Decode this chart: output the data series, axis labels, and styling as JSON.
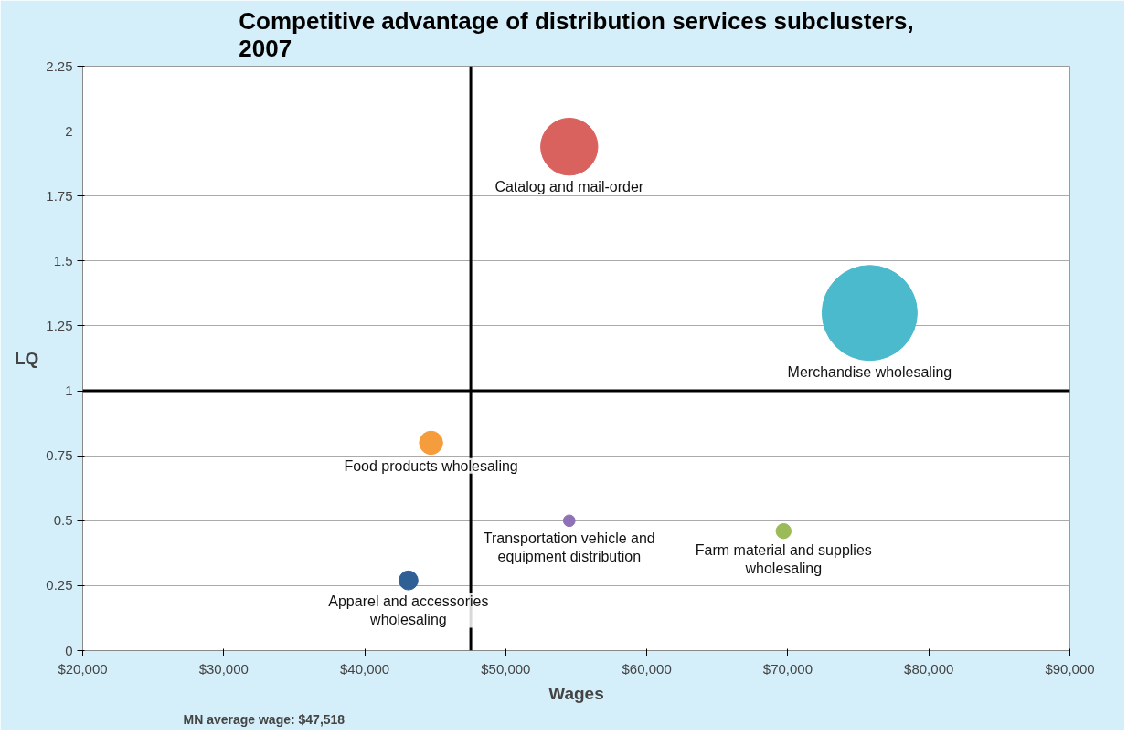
{
  "chart_data": {
    "type": "bubble",
    "title": "Competitive advantage of distribution services subclusters,\n2007",
    "xlabel": "Wages",
    "ylabel": "LQ",
    "xlim": [
      20000,
      90000
    ],
    "ylim": [
      0,
      2.25
    ],
    "xticks": [
      {
        "value": 20000,
        "label": "$20,000"
      },
      {
        "value": 30000,
        "label": "$30,000"
      },
      {
        "value": 40000,
        "label": "$40,000"
      },
      {
        "value": 50000,
        "label": "$50,000"
      },
      {
        "value": 60000,
        "label": "$60,000"
      },
      {
        "value": 70000,
        "label": "$70,000"
      },
      {
        "value": 80000,
        "label": "$80,000"
      },
      {
        "value": 90000,
        "label": "$90,000"
      }
    ],
    "yticks": [
      0,
      0.25,
      0.5,
      0.75,
      1,
      1.25,
      1.5,
      1.75,
      2,
      2.25
    ],
    "grid": "y",
    "series": [
      {
        "name": "Apparel and accessories\nwholesaling",
        "color": "#2e5f95",
        "x": [
          43100
        ],
        "values": [
          0.27
        ],
        "sizes": [
          0.04
        ]
      },
      {
        "name": "Food products wholesaling",
        "color": "#f59c3c",
        "x": [
          44700
        ],
        "values": [
          0.8
        ],
        "sizes": [
          0.06
        ]
      },
      {
        "name": "Transportation vehicle and\nequipment distribution",
        "color": "#8e71b6",
        "x": [
          54500
        ],
        "values": [
          0.5
        ],
        "sizes": [
          0.015
        ]
      },
      {
        "name": "Farm material and supplies\nwholesaling",
        "color": "#9bbb59",
        "x": [
          69700
        ],
        "values": [
          0.46
        ],
        "sizes": [
          0.025
        ]
      },
      {
        "name": "Catalog and mail-order",
        "color": "#d9625e",
        "x": [
          54500
        ],
        "values": [
          1.94
        ],
        "sizes": [
          0.36
        ]
      },
      {
        "name": "Merchandise wholesaling",
        "color": "#4bbacc",
        "x": [
          75800
        ],
        "values": [
          1.3
        ],
        "sizes": [
          1
        ]
      }
    ],
    "ref_lines": [
      {
        "axis": "x",
        "value": 47518,
        "color": "#000000"
      },
      {
        "axis": "y",
        "value": 1,
        "color": "#000000"
      }
    ],
    "annotations": [
      "MN average wage: $47,518"
    ]
  }
}
